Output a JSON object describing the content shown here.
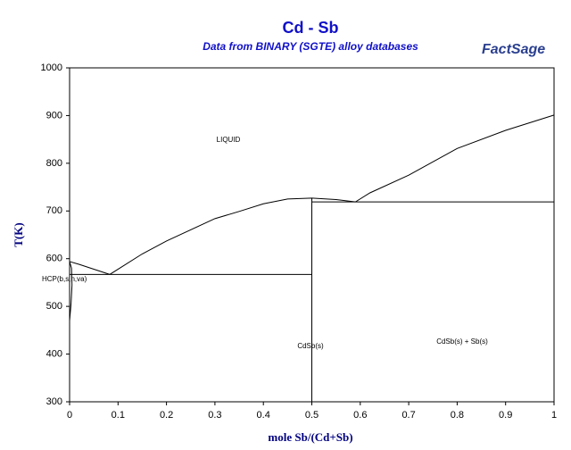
{
  "chart_data": {
    "type": "line",
    "title": "Cd - Sb",
    "subtitle": "Data from BINARY (SGTE) alloy databases",
    "logo": "FactSage",
    "x_label": "mole Sb/(Cd+Sb)",
    "y_label": "T(K)",
    "annotations": [
      "LIQUID",
      "HCP(b,s,n,va)",
      "CdSb(s)",
      "CdSb(s) + Sb(s)"
    ],
    "xlim": [
      0,
      1
    ],
    "ylim": [
      300,
      1000
    ],
    "xticks": [
      0,
      0.1,
      0.2,
      0.3,
      0.4,
      0.5,
      0.6,
      0.7,
      0.8,
      0.9,
      1
    ],
    "yticks": [
      300,
      400,
      500,
      600,
      700,
      800,
      900,
      1000
    ],
    "color": "#000000",
    "series": [
      {
        "x": [
          0,
          0.02,
          0.05,
          0.083
        ],
        "values": [
          594,
          588,
          578,
          567
        ]
      },
      {
        "x": [
          0.083,
          0.15,
          0.2,
          0.3,
          0.35,
          0.4,
          0.45,
          0.5,
          0.55,
          0.59
        ],
        "values": [
          567,
          610,
          637,
          684,
          699,
          715,
          725,
          727,
          724,
          719
        ]
      },
      {
        "x": [
          0.59,
          0.62,
          0.7,
          0.8,
          0.9,
          1
        ],
        "values": [
          719,
          738,
          775,
          831,
          869,
          901
        ]
      },
      {
        "x": [
          0,
          0.004,
          0.005,
          0.003,
          0
        ],
        "values": [
          594,
          580,
          545,
          505,
          470
        ]
      },
      {
        "x": [
          0,
          0.5
        ],
        "values": [
          567,
          567
        ]
      },
      {
        "x": [
          0.5,
          1
        ],
        "values": [
          719,
          719
        ]
      },
      {
        "x": [
          0.5,
          0.5
        ],
        "values": [
          300,
          727
        ]
      }
    ]
  }
}
